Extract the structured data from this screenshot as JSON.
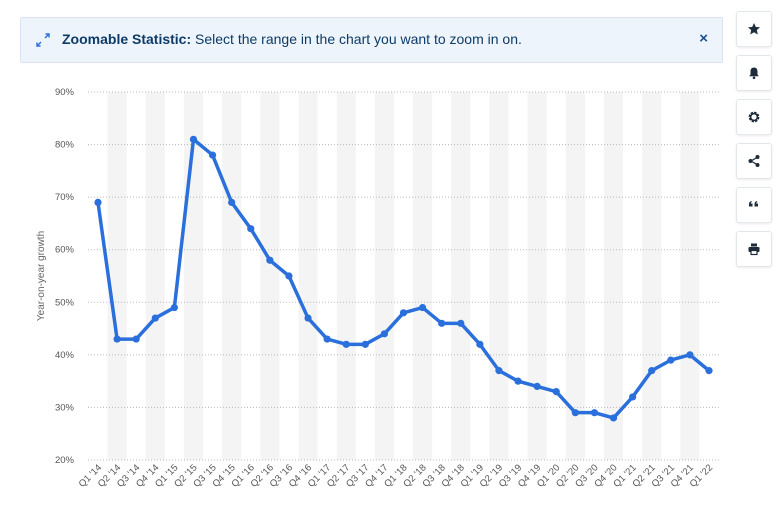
{
  "banner": {
    "title": "Zoomable Statistic:",
    "message": "Select the range in the chart you want to zoom in on.",
    "close_label": "×"
  },
  "toolbar": {
    "icons": [
      "star-icon",
      "bell-icon",
      "gear-icon",
      "share-icon",
      "quote-icon",
      "print-icon"
    ]
  },
  "colors": {
    "line": "#2a6fdb",
    "band": "#f4f4f4",
    "grid": "#b9b9b9",
    "banner_bg": "#eef4fb"
  },
  "chart_data": {
    "type": "line",
    "title": "",
    "xlabel": "",
    "ylabel": "Year-on-year growth",
    "ylim": [
      20,
      90
    ],
    "yticks": [
      "20%",
      "30%",
      "40%",
      "50%",
      "60%",
      "70%",
      "80%",
      "90%"
    ],
    "ytick_values": [
      20,
      30,
      40,
      50,
      60,
      70,
      80,
      90
    ],
    "grid": true,
    "categories": [
      "Q1 '14",
      "Q2 '14",
      "Q3 '14",
      "Q4 '14",
      "Q1 '15",
      "Q2 '15",
      "Q3 '15",
      "Q4 '15",
      "Q1 '16",
      "Q2 '16",
      "Q3 '16",
      "Q4 '16",
      "Q1 '17",
      "Q2 '17",
      "Q3 '17",
      "Q4 '17",
      "Q1 '18",
      "Q2 '18",
      "Q3 '18",
      "Q4 '18",
      "Q1 '19",
      "Q2 '19",
      "Q3 '19",
      "Q4 '19",
      "Q1 '20",
      "Q2 '20",
      "Q3 '20",
      "Q4 '20",
      "Q1 '21",
      "Q2 '21",
      "Q3 '21",
      "Q4 '21",
      "Q1 '22"
    ],
    "series": [
      {
        "values": [
          69,
          43,
          43,
          47,
          49,
          81,
          78,
          69,
          64,
          58,
          55,
          47,
          43,
          42,
          42,
          44,
          48,
          49,
          46,
          46,
          42,
          37,
          35,
          34,
          33,
          29,
          29,
          28,
          32,
          37,
          39,
          40,
          37
        ]
      }
    ]
  }
}
